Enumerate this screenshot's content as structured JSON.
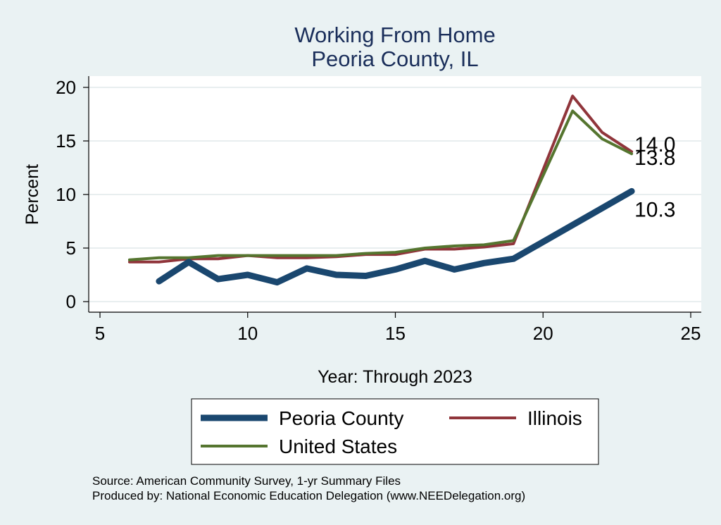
{
  "chart_data": {
    "type": "line",
    "title": "Working From Home",
    "subtitle": "Peoria County, IL",
    "xlabel": "Year: Through 2023",
    "ylabel": "Percent",
    "xlim": [
      5,
      25
    ],
    "ylim": [
      0,
      20
    ],
    "xticks": [
      5,
      10,
      15,
      20,
      25
    ],
    "yticks": [
      0,
      5,
      10,
      15,
      20
    ],
    "grid": true,
    "legend_position": "bottom",
    "series": [
      {
        "name": "Peoria County",
        "color": "#1a476f",
        "x": [
          7,
          8,
          9,
          10,
          11,
          12,
          13,
          14,
          15,
          16,
          17,
          18,
          19,
          23
        ],
        "y": [
          1.9,
          3.7,
          2.1,
          2.5,
          1.8,
          3.1,
          2.5,
          2.4,
          3.0,
          3.8,
          3.0,
          3.6,
          4.0,
          10.3
        ]
      },
      {
        "name": "Illinois",
        "color": "#90353b",
        "x": [
          6,
          7,
          8,
          9,
          10,
          11,
          12,
          13,
          14,
          15,
          16,
          17,
          18,
          19,
          21,
          22,
          23
        ],
        "y": [
          3.7,
          3.7,
          4.0,
          4.0,
          4.3,
          4.1,
          4.1,
          4.2,
          4.4,
          4.4,
          4.9,
          4.9,
          5.1,
          5.4,
          19.2,
          15.8,
          14.0
        ]
      },
      {
        "name": "United States",
        "color": "#55752f",
        "x": [
          6,
          7,
          8,
          9,
          10,
          11,
          12,
          13,
          14,
          15,
          16,
          17,
          18,
          19,
          21,
          22,
          23
        ],
        "y": [
          3.9,
          4.1,
          4.1,
          4.3,
          4.3,
          4.3,
          4.3,
          4.3,
          4.5,
          4.6,
          5.0,
          5.2,
          5.3,
          5.7,
          17.8,
          15.2,
          13.8
        ]
      }
    ],
    "end_labels": [
      {
        "series": "Illinois",
        "text": "14.0"
      },
      {
        "series": "United States",
        "text": "13.8"
      },
      {
        "series": "Peoria County",
        "text": "10.3"
      }
    ]
  },
  "source": {
    "line1": "Source: American Community Survey, 1-yr Summary Files",
    "line2": "Produced by: National Economic Education Delegation (www.NEEDelegation.org)"
  }
}
